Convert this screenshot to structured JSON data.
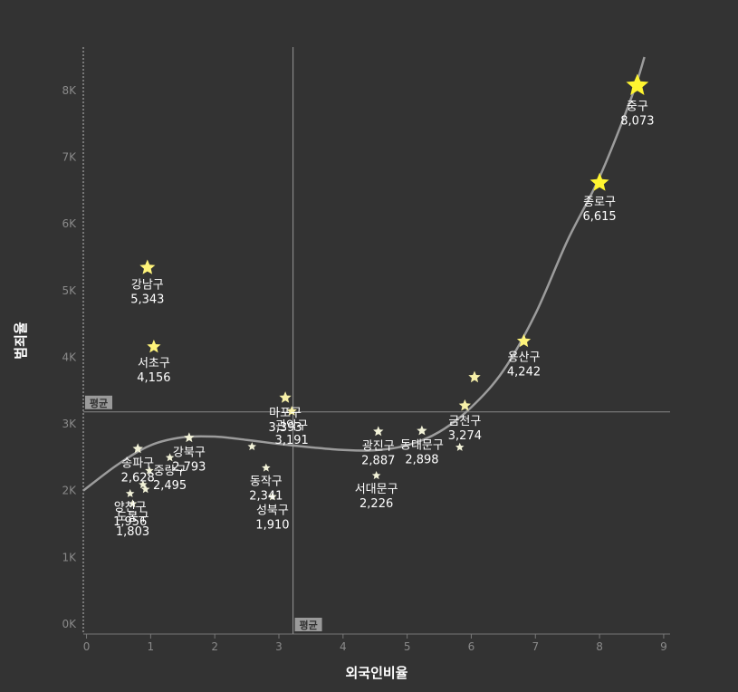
{
  "chart_data": {
    "type": "scatter",
    "xlabel": "외국인비율",
    "ylabel": "범죄율",
    "xlim": [
      -0.05,
      9.1
    ],
    "ylim": [
      -150,
      8650
    ],
    "x_ticks": [
      "0",
      "1",
      "2",
      "3",
      "4",
      "5",
      "6",
      "7",
      "8",
      "9"
    ],
    "y_ticks": [
      "0K",
      "1K",
      "2K",
      "3K",
      "4K",
      "5K",
      "6K",
      "7K",
      "8K"
    ],
    "avg_x": {
      "value": 3.22,
      "label": "평균"
    },
    "avg_y": {
      "value": 3180,
      "label": "평균"
    },
    "trend_x": [
      -0.05,
      0.5,
      1,
      1.5,
      2,
      2.5,
      3,
      3.5,
      4,
      4.5,
      5,
      5.5,
      6,
      6.5,
      7,
      7.5,
      8,
      8.5,
      8.7
    ],
    "trend_y": [
      2000,
      2400,
      2680,
      2800,
      2810,
      2760,
      2700,
      2650,
      2610,
      2605,
      2680,
      2880,
      3250,
      3800,
      4650,
      5750,
      6700,
      7900,
      8500
    ],
    "points": [
      {
        "x": 8.59,
        "y": 8073,
        "name": "중구",
        "value": "8,073",
        "highlight": true,
        "size": 13
      },
      {
        "x": 8.0,
        "y": 6615,
        "name": "종로구",
        "value": "6,615",
        "highlight": true,
        "size": 11
      },
      {
        "x": 0.95,
        "y": 5343,
        "name": "강남구",
        "value": "5,343",
        "highlight": true,
        "size": 9
      },
      {
        "x": 1.05,
        "y": 4156,
        "name": "서초구",
        "value": "4,156",
        "highlight": true,
        "size": 8
      },
      {
        "x": 6.82,
        "y": 4242,
        "name": "용산구",
        "value": "4,242",
        "highlight": true,
        "size": 8
      },
      {
        "x": 6.05,
        "y": 3700,
        "name": "",
        "value": "",
        "highlight": true,
        "size": 7
      },
      {
        "x": 5.9,
        "y": 3274,
        "name": "금천구",
        "value": "3,274",
        "highlight": true,
        "size": 7
      },
      {
        "x": 3.1,
        "y": 3393,
        "name": "마포구",
        "value": "3,393",
        "highlight": true,
        "size": 7
      },
      {
        "x": 3.2,
        "y": 3191,
        "name": "관악구",
        "value": "3,191",
        "highlight": true,
        "size": 6
      },
      {
        "x": 0.8,
        "y": 2628,
        "name": "송파구",
        "value": "2,628",
        "highlight": false,
        "size": 6
      },
      {
        "x": 1.6,
        "y": 2793,
        "name": "강북구",
        "value": "2,793",
        "highlight": false,
        "size": 6
      },
      {
        "x": 1.3,
        "y": 2495,
        "name": "중랑구",
        "value": "2,495",
        "highlight": false,
        "size": 5
      },
      {
        "x": 2.8,
        "y": 2341,
        "name": "동작구",
        "value": "2,341",
        "highlight": false,
        "size": 5
      },
      {
        "x": 4.55,
        "y": 2887,
        "name": "광진구",
        "value": "2,887",
        "highlight": false,
        "size": 6
      },
      {
        "x": 5.23,
        "y": 2898,
        "name": "동대문구",
        "value": "2,898",
        "highlight": false,
        "size": 6
      },
      {
        "x": 4.52,
        "y": 2226,
        "name": "서대문구",
        "value": "2,226",
        "highlight": false,
        "size": 5
      },
      {
        "x": 2.9,
        "y": 1910,
        "name": "성북구",
        "value": "1,910",
        "highlight": false,
        "size": 5
      },
      {
        "x": 0.68,
        "y": 1956,
        "name": "양천구",
        "value": "1,956",
        "highlight": false,
        "size": 5
      },
      {
        "x": 0.72,
        "y": 1803,
        "name": "도봉구",
        "value": "1,803",
        "highlight": false,
        "size": 5
      },
      {
        "x": 2.58,
        "y": 2660,
        "name": "",
        "value": "",
        "highlight": false,
        "size": 5
      },
      {
        "x": 0.88,
        "y": 2090,
        "name": "",
        "value": "",
        "highlight": false,
        "size": 5
      },
      {
        "x": 0.92,
        "y": 2020,
        "name": "",
        "value": "",
        "highlight": false,
        "size": 5
      },
      {
        "x": 0.98,
        "y": 2300,
        "name": "",
        "value": "",
        "highlight": false,
        "size": 5
      },
      {
        "x": 5.82,
        "y": 2650,
        "name": "",
        "value": "",
        "highlight": false,
        "size": 5
      }
    ]
  }
}
